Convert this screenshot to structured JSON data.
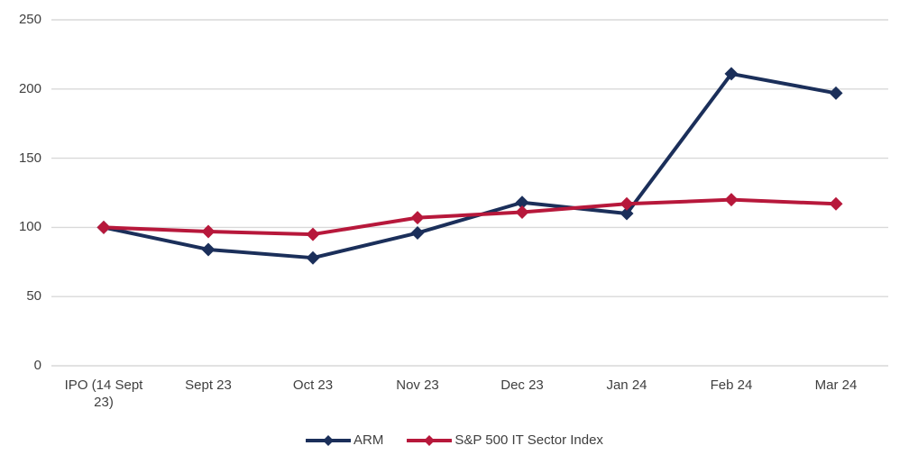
{
  "chart_data": {
    "type": "line",
    "categories": [
      "IPO (14 Sept 23)",
      "Sept 23",
      "Oct 23",
      "Nov 23",
      "Dec 23",
      "Jan 24",
      "Feb 24",
      "Mar 24"
    ],
    "series": [
      {
        "name": "ARM",
        "color": "#1b2f5a",
        "values": [
          100,
          84,
          78,
          96,
          118,
          110,
          211,
          197
        ]
      },
      {
        "name": "S&P 500 IT Sector Index",
        "color": "#b7183b",
        "values": [
          100,
          97,
          95,
          107,
          111,
          117,
          120,
          117
        ]
      }
    ],
    "title": "",
    "xlabel": "",
    "ylabel": "",
    "ylim": [
      0,
      250
    ],
    "yticks": [
      0,
      50,
      100,
      150,
      200,
      250
    ],
    "grid": true,
    "gridline_color": "#d9d9d9",
    "tick_label_color": "#3f3f3f",
    "legend_position": "bottom",
    "marker": "diamond",
    "background": "#ffffff"
  }
}
